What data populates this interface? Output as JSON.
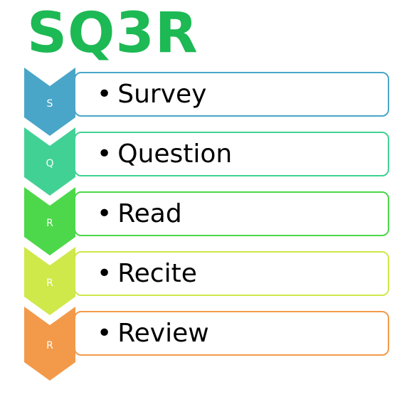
{
  "title": "SQ3R",
  "steps": [
    {
      "letter": "S",
      "label": "Survey",
      "color": "#4aa6c8"
    },
    {
      "letter": "Q",
      "label": "Question",
      "color": "#42d195"
    },
    {
      "letter": "R",
      "label": "Read",
      "color": "#4cd84a"
    },
    {
      "letter": "R",
      "label": "Recite",
      "color": "#cfe84a"
    },
    {
      "letter": "R",
      "label": "Review",
      "color": "#f29a4a"
    }
  ],
  "bullet": "•"
}
